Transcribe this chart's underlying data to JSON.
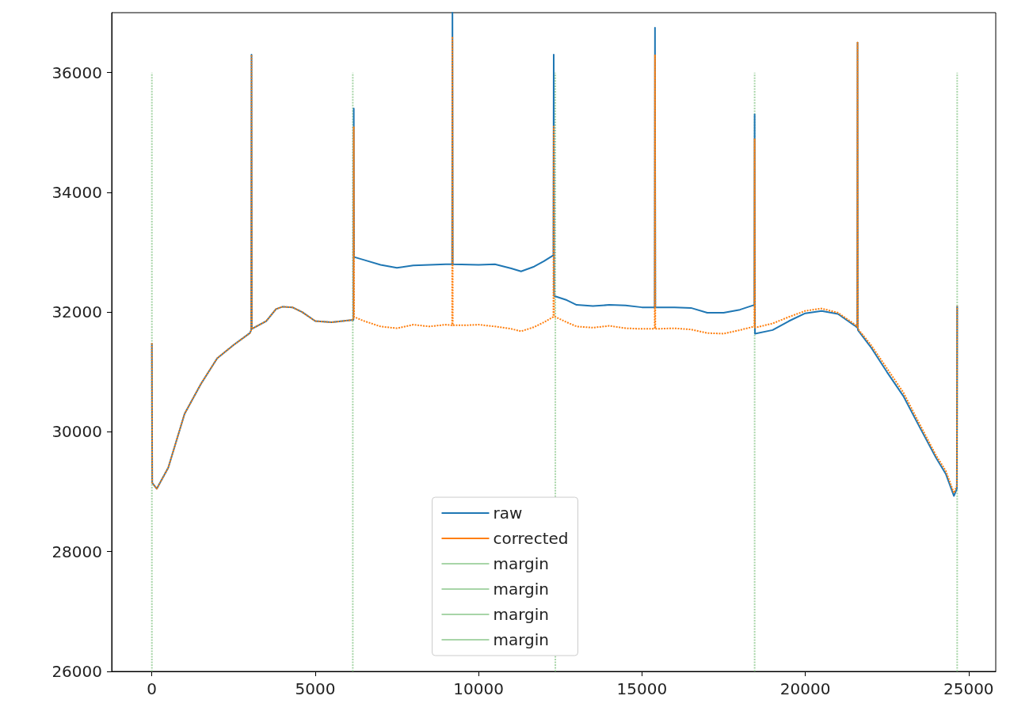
{
  "chart_data": {
    "type": "line",
    "xlim": [
      -1230,
      25830
    ],
    "ylim": [
      26000,
      37000
    ],
    "xticks": [
      0,
      5000,
      10000,
      15000,
      20000,
      25000
    ],
    "yticks": [
      26000,
      28000,
      30000,
      32000,
      34000,
      36000
    ],
    "grid": false,
    "legend": "bottom",
    "marker": "none",
    "series": [
      {
        "name": "raw",
        "color": "#1f77b4",
        "line_style": "solid",
        "x": [
          0,
          10,
          150,
          500,
          1000,
          1500,
          2000,
          2500,
          3000,
          3040,
          3050,
          3060,
          3500,
          3800,
          4000,
          4300,
          4600,
          5000,
          5500,
          6000,
          6170,
          6180,
          6190,
          6500,
          7000,
          7500,
          8000,
          8500,
          9000,
          9190,
          9200,
          9210,
          10000,
          10500,
          11000,
          11300,
          11700,
          12000,
          12290,
          12300,
          12310,
          12700,
          13000,
          13500,
          14000,
          14500,
          15000,
          15390,
          15400,
          15410,
          16000,
          16500,
          17000,
          17500,
          18000,
          18440,
          18450,
          18460,
          19000,
          19500,
          20000,
          20500,
          21000,
          21500,
          21590,
          21600,
          21610,
          22000,
          22500,
          23000,
          23500,
          24000,
          24300,
          24550,
          24640,
          24650
        ],
        "values": [
          31480,
          29150,
          29050,
          29400,
          30300,
          30800,
          31230,
          31450,
          31650,
          31700,
          36300,
          31720,
          31850,
          32050,
          32090,
          32080,
          32000,
          31850,
          31830,
          31860,
          31870,
          35400,
          32920,
          32870,
          32790,
          32740,
          32780,
          32790,
          32800,
          32800,
          37000,
          32800,
          32790,
          32800,
          32730,
          32680,
          32760,
          32850,
          32950,
          36300,
          32270,
          32200,
          32120,
          32100,
          32120,
          32110,
          32080,
          32080,
          36750,
          32080,
          32080,
          32070,
          31990,
          31990,
          32040,
          32120,
          35300,
          31640,
          31700,
          31850,
          31980,
          32020,
          31970,
          31780,
          31740,
          36500,
          31700,
          31420,
          31000,
          30600,
          30080,
          29570,
          29300,
          28930,
          29050,
          32100
        ]
      },
      {
        "name": "corrected",
        "color": "#ff7f0e",
        "line_style": "dotted",
        "x": [
          0,
          10,
          150,
          500,
          1000,
          1500,
          2000,
          2500,
          3000,
          3040,
          3050,
          3060,
          3500,
          3800,
          4000,
          4300,
          4600,
          5000,
          5500,
          6000,
          6170,
          6180,
          6190,
          6500,
          7000,
          7500,
          8000,
          8500,
          9000,
          9190,
          9200,
          9210,
          9600,
          10000,
          10500,
          11000,
          11300,
          11700,
          12000,
          12290,
          12300,
          12310,
          12700,
          13000,
          13500,
          14000,
          14500,
          15000,
          15390,
          15400,
          15410,
          16000,
          16500,
          17000,
          17500,
          18000,
          18440,
          18450,
          18460,
          19000,
          19500,
          20000,
          20500,
          21000,
          21500,
          21590,
          21600,
          21610,
          22000,
          22500,
          23000,
          23500,
          24000,
          24300,
          24550,
          24640,
          24650
        ],
        "values": [
          31480,
          29150,
          29050,
          29400,
          30300,
          30800,
          31230,
          31450,
          31650,
          31700,
          36300,
          31720,
          31850,
          32050,
          32090,
          32080,
          32000,
          31850,
          31830,
          31860,
          31870,
          35100,
          31920,
          31850,
          31760,
          31730,
          31790,
          31760,
          31790,
          31780,
          36600,
          31780,
          31780,
          31790,
          31760,
          31720,
          31680,
          31750,
          31830,
          31920,
          35100,
          31930,
          31830,
          31760,
          31740,
          31770,
          31730,
          31720,
          31720,
          36300,
          31720,
          31730,
          31710,
          31650,
          31640,
          31700,
          31760,
          34900,
          31740,
          31810,
          31920,
          32020,
          32060,
          31990,
          31800,
          31760,
          36500,
          31720,
          31460,
          31060,
          30660,
          30130,
          29610,
          29350,
          28980,
          29100,
          32100
        ]
      },
      {
        "name": "margin",
        "color": "#a8d5a8",
        "line_style": "dotted",
        "x": [
          0,
          0,
          null,
          6150,
          6150
        ],
        "values": [
          26000,
          36000,
          null,
          26000,
          36000
        ]
      },
      {
        "name": "margin",
        "color": "#a8d5a8",
        "line_style": "dotted",
        "x": [
          12350,
          12350
        ],
        "values": [
          26000,
          36000
        ]
      },
      {
        "name": "margin",
        "color": "#a8d5a8",
        "line_style": "dotted",
        "x": [
          18450,
          18450
        ],
        "values": [
          26000,
          36000
        ]
      },
      {
        "name": "margin",
        "color": "#a8d5a8",
        "line_style": "dotted",
        "x": [
          24650,
          24650
        ],
        "values": [
          26000,
          36000
        ]
      }
    ]
  }
}
